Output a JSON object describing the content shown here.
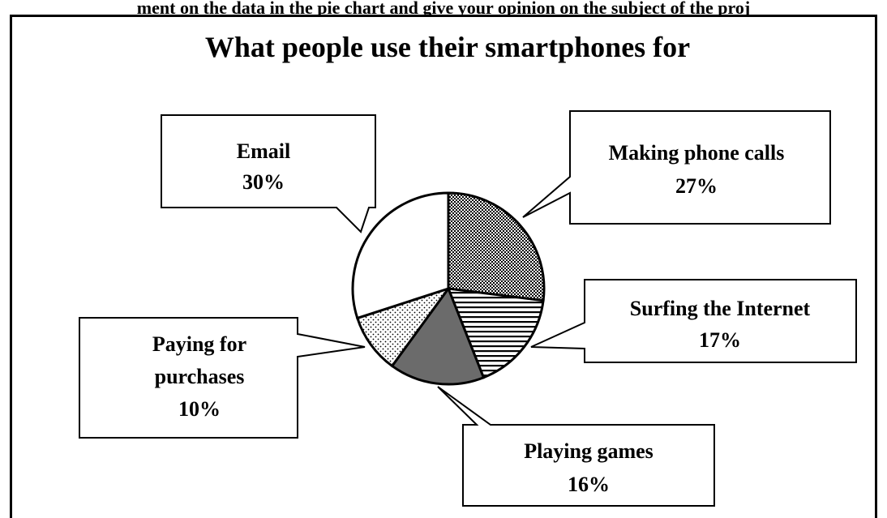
{
  "instruction": "ment on the data in the pie chart and give your opinion on the subject of the proj",
  "chart_data": {
    "type": "pie",
    "title": "What people use their smartphones for",
    "slices": [
      {
        "label": "Making phone calls",
        "value": 27,
        "value_text": "27%",
        "pattern": "checker"
      },
      {
        "label": "Surfing the Internet",
        "value": 17,
        "value_text": "17%",
        "pattern": "hlines"
      },
      {
        "label": "Playing games",
        "value": 16,
        "value_text": "16%",
        "pattern": "solid-gray"
      },
      {
        "label": "Paying for purchases",
        "value": 10,
        "value_text": "10%",
        "pattern": "dots"
      },
      {
        "label": "Email",
        "value": 30,
        "value_text": "30%",
        "pattern": "white"
      }
    ],
    "start_angle": "12 o'clock",
    "direction": "clockwise",
    "legend": "none"
  },
  "callouts": {
    "email": {
      "lines": [
        "Email",
        "30%"
      ]
    },
    "calls": {
      "lines": [
        "Making phone calls",
        "27%"
      ]
    },
    "internet": {
      "lines": [
        "Surfing the Internet",
        "17%"
      ]
    },
    "purchases": {
      "lines": [
        "Paying for",
        "purchases",
        "10%"
      ]
    },
    "games": {
      "lines": [
        "Playing games",
        "16%"
      ]
    }
  },
  "colors": {
    "games_fill": "#6b6b6b",
    "stroke": "#000000",
    "background": "#ffffff"
  }
}
